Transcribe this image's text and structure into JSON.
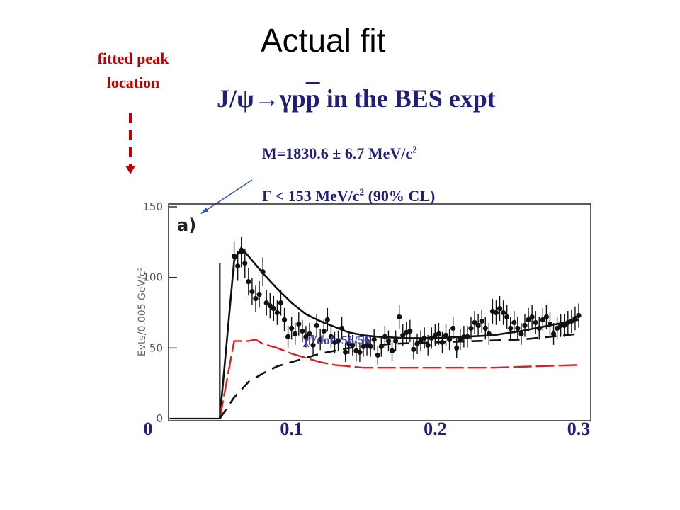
{
  "slide": {
    "title": "Actual fit",
    "peak_note": [
      "fitted peak",
      "location"
    ],
    "subtitle": {
      "prefix": "J/ψ",
      "arrow": "→",
      "gamma": "γp",
      "pbar": "p",
      "suffix": " in the BES expt"
    },
    "mass": {
      "text": "M=1830.6 ± 6.7 MeV/c",
      "sup": "2"
    },
    "width": {
      "text": "Γ < 153 MeV/c",
      "sup": "2",
      "tail": " (90% CL)"
    },
    "chi2": {
      "pre": "χ",
      "sup": "2",
      "post": "/dof=56/56"
    },
    "panel_label": "a)"
  },
  "colors": {
    "data": "#111111",
    "fit": "#111111",
    "background_curve": "#e02020",
    "signal_curve": "#111111",
    "annotation": "#1f1f7a",
    "peak_note": "#c00000"
  },
  "chart_data": {
    "type": "scatter",
    "xlabel": "",
    "ylabel": "Evts/0.005 GeV/c²",
    "xlim": [
      0,
      0.3
    ],
    "ylim": [
      0,
      150
    ],
    "x_ticks": [
      "0",
      "0.1",
      "0.2",
      "0.3"
    ],
    "y_ticks": [
      "0",
      "50",
      "100",
      "150"
    ],
    "series": [
      {
        "kind": "points",
        "x": [
          0.06,
          0.0625,
          0.065,
          0.0675,
          0.07,
          0.0725,
          0.075,
          0.0775,
          0.08,
          0.0825,
          0.085,
          0.0875,
          0.09,
          0.0925,
          0.095,
          0.0975,
          0.1,
          0.1025,
          0.105,
          0.1075,
          0.11,
          0.1125,
          0.115,
          0.1175,
          0.12,
          0.1225,
          0.125,
          0.1275,
          0.13,
          0.1325,
          0.135,
          0.1375,
          0.14,
          0.1425,
          0.145,
          0.1475,
          0.15,
          0.1525,
          0.155,
          0.1575,
          0.16,
          0.1625,
          0.165,
          0.1675,
          0.17,
          0.1725,
          0.175,
          0.1775,
          0.18,
          0.1825,
          0.185,
          0.1875,
          0.19,
          0.1925,
          0.195,
          0.1975,
          0.2,
          0.2025,
          0.205,
          0.2075,
          0.21,
          0.2125,
          0.215,
          0.2175,
          0.22,
          0.2225,
          0.225,
          0.2275,
          0.23,
          0.2325,
          0.235,
          0.2375,
          0.24,
          0.2425,
          0.245,
          0.2475,
          0.25,
          0.2525,
          0.255,
          0.2575,
          0.26,
          0.2625,
          0.265,
          0.2675,
          0.27,
          0.2725,
          0.275,
          0.2775,
          0.28,
          0.2825,
          0.285,
          0.2875,
          0.29,
          0.2925,
          0.295,
          0.2975,
          0.3
        ],
        "y": [
          115,
          108,
          118,
          110,
          97,
          90,
          85,
          88,
          104,
          82,
          80,
          78,
          75,
          82,
          70,
          58,
          64,
          60,
          67,
          62,
          58,
          60,
          52,
          66,
          56,
          62,
          70,
          58,
          54,
          55,
          64,
          47,
          53,
          52,
          48,
          47,
          51,
          52,
          51,
          56,
          45,
          51,
          58,
          55,
          48,
          55,
          72,
          59,
          61,
          62,
          49,
          53,
          55,
          57,
          52,
          57,
          59,
          60,
          54,
          59,
          56,
          64,
          50,
          56,
          58,
          58,
          64,
          68,
          66,
          69,
          64,
          60,
          76,
          75,
          78,
          75,
          72,
          64,
          68,
          64,
          60,
          66,
          70,
          72,
          68,
          64,
          70,
          72,
          67,
          60,
          64,
          66,
          66,
          68,
          69,
          71,
          73
        ]
      },
      {
        "kind": "line",
        "name": "total fit",
        "x": [
          0.05,
          0.06,
          0.065,
          0.07,
          0.08,
          0.09,
          0.1,
          0.11,
          0.12,
          0.13,
          0.14,
          0.15,
          0.16,
          0.18,
          0.2,
          0.22,
          0.24,
          0.26,
          0.28,
          0.3
        ],
        "y": [
          0,
          112,
          121,
          115,
          103,
          92,
          82,
          74,
          69,
          65,
          61,
          59,
          58,
          57,
          57,
          58,
          59,
          62,
          66,
          70
        ]
      },
      {
        "kind": "line",
        "name": "background",
        "x": [
          0.05,
          0.06,
          0.07,
          0.075,
          0.08,
          0.09,
          0.1,
          0.11,
          0.12,
          0.13,
          0.14,
          0.15,
          0.16,
          0.2,
          0.24,
          0.27,
          0.3
        ],
        "y": [
          0,
          55,
          55,
          56,
          53,
          50,
          46,
          43,
          40,
          38,
          37,
          36,
          36,
          36,
          36,
          37,
          38
        ]
      },
      {
        "kind": "line",
        "name": "signal",
        "x": [
          0.05,
          0.06,
          0.07,
          0.08,
          0.09,
          0.1,
          0.11,
          0.12,
          0.13,
          0.14,
          0.15,
          0.17,
          0.2,
          0.23,
          0.26,
          0.3
        ],
        "y": [
          0,
          15,
          26,
          32,
          37,
          40,
          43,
          46,
          48,
          50,
          51,
          53,
          54,
          55,
          56,
          60
        ]
      }
    ]
  }
}
